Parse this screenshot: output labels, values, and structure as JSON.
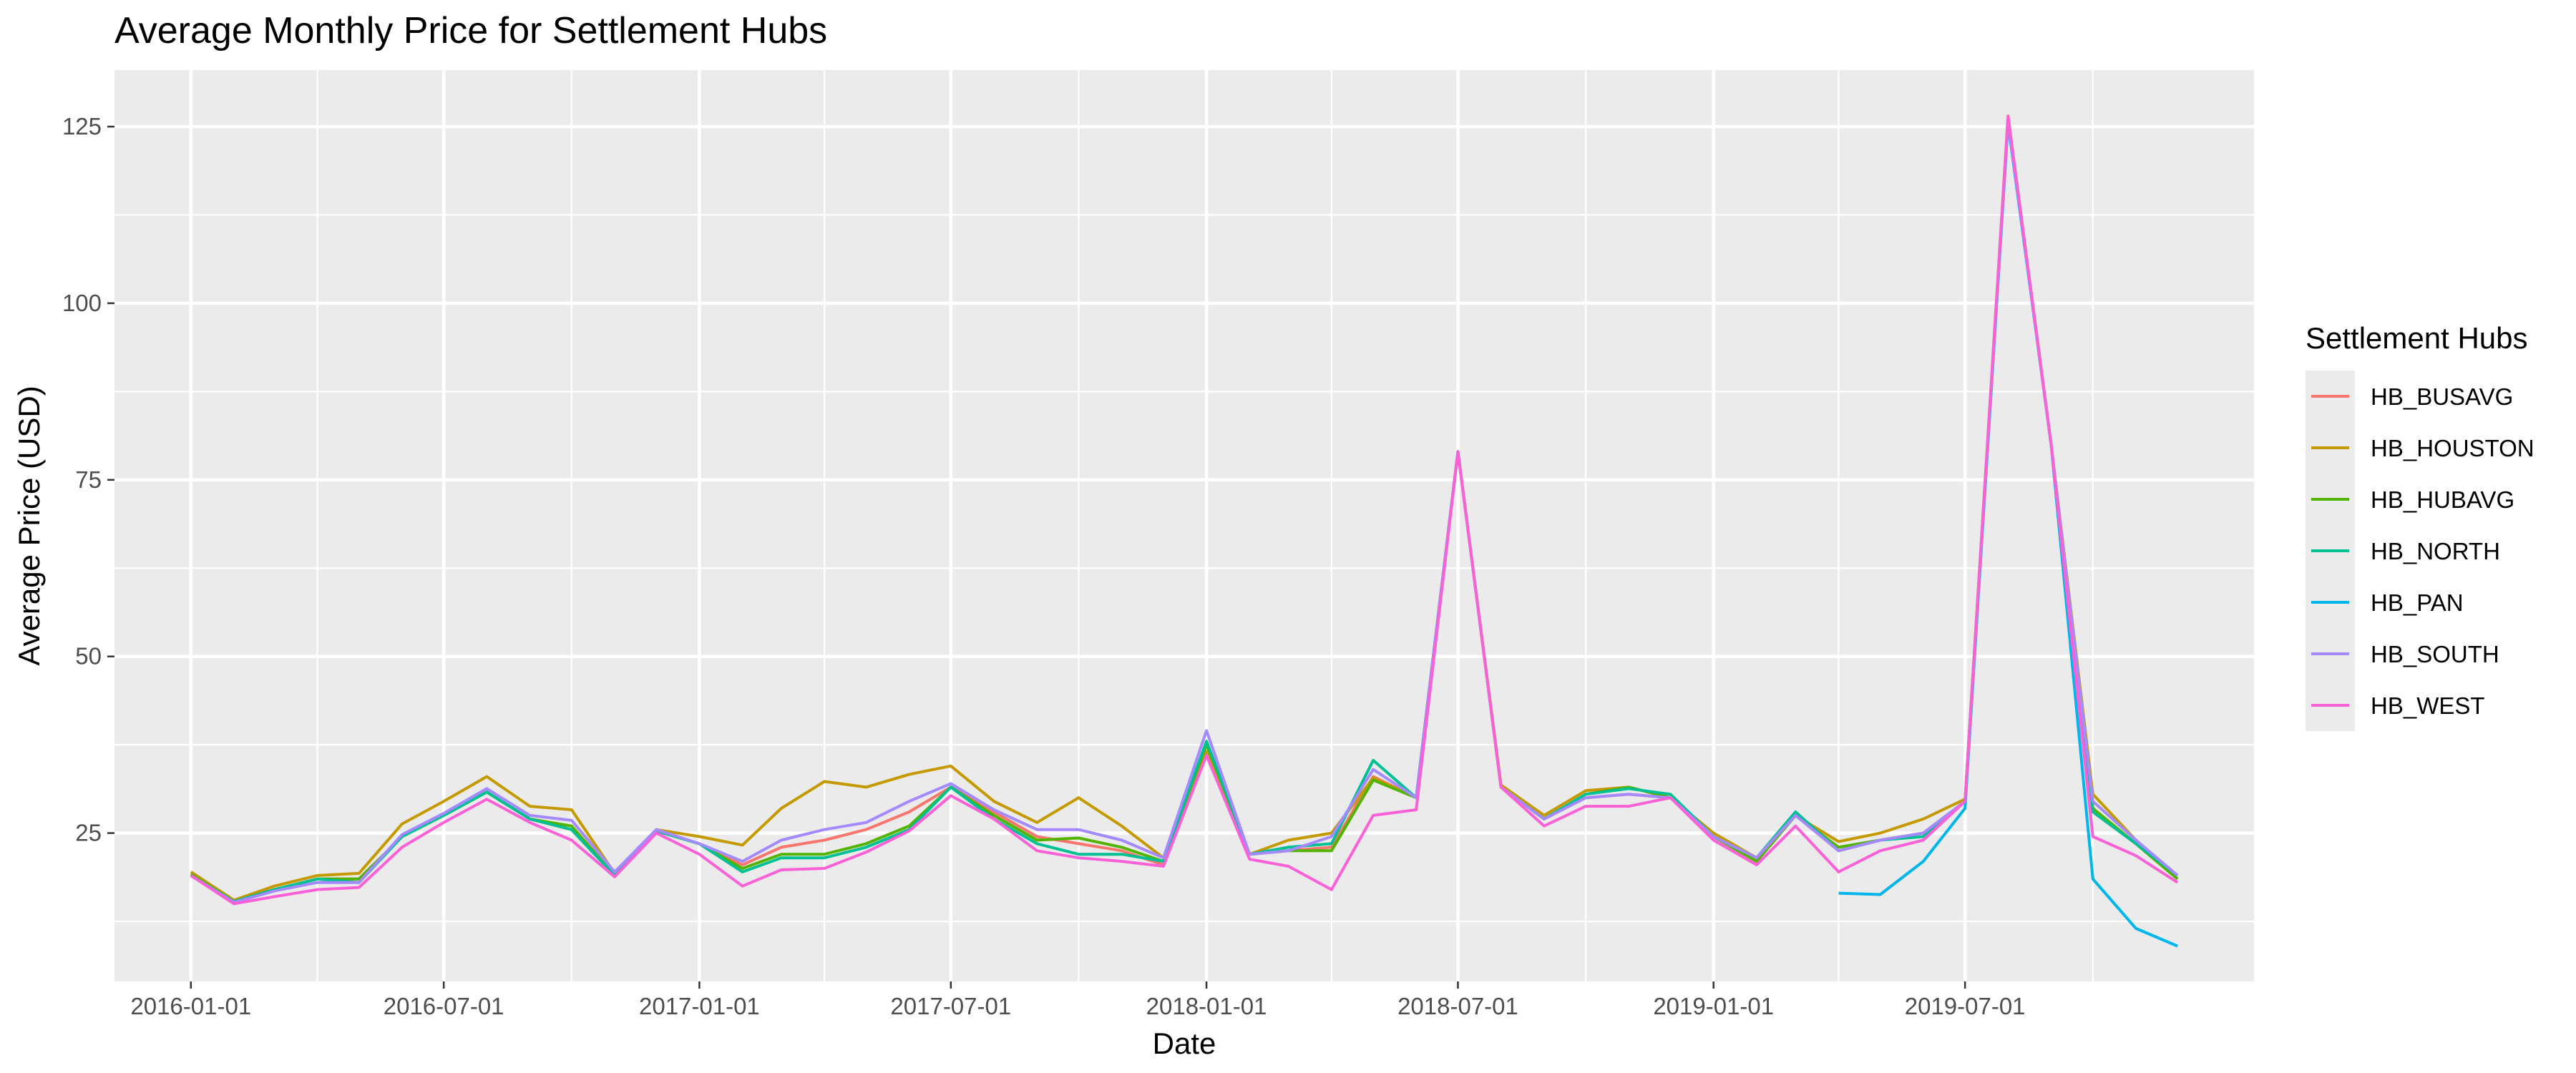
{
  "chart_data": {
    "type": "line",
    "title": "Average Monthly Price for Settlement Hubs",
    "xlabel": "Date",
    "ylabel": "Average Price (USD)",
    "legend_title": "Settlement Hubs",
    "legend_position": "right",
    "grid": true,
    "background": "#ebebeb",
    "x_tick_labels": [
      "2016-01-01",
      "2016-07-01",
      "2017-01-01",
      "2017-07-01",
      "2018-01-01",
      "2018-07-01",
      "2019-01-01",
      "2019-07-01"
    ],
    "y_ticks": [
      25,
      50,
      75,
      100,
      125
    ],
    "ylim": [
      4,
      133
    ],
    "xlim": [
      "2015-11-07",
      "2020-01-25"
    ],
    "x": [
      "2016-01-01",
      "2016-02-01",
      "2016-03-01",
      "2016-04-01",
      "2016-05-01",
      "2016-06-01",
      "2016-07-01",
      "2016-08-01",
      "2016-09-01",
      "2016-10-01",
      "2016-11-01",
      "2016-12-01",
      "2017-01-01",
      "2017-02-01",
      "2017-03-01",
      "2017-04-01",
      "2017-05-01",
      "2017-06-01",
      "2017-07-01",
      "2017-08-01",
      "2017-09-01",
      "2017-10-01",
      "2017-11-01",
      "2017-12-01",
      "2018-01-01",
      "2018-02-01",
      "2018-03-01",
      "2018-04-01",
      "2018-05-01",
      "2018-06-01",
      "2018-07-01",
      "2018-08-01",
      "2018-09-01",
      "2018-10-01",
      "2018-11-01",
      "2018-12-01",
      "2019-01-01",
      "2019-02-01",
      "2019-03-01",
      "2019-04-01",
      "2019-05-01",
      "2019-06-01",
      "2019-07-01",
      "2019-08-01",
      "2019-09-01",
      "2019-10-01",
      "2019-11-01",
      "2019-12-01"
    ],
    "series": [
      {
        "name": "HB_BUSAVG",
        "color": "#F8766D",
        "values": [
          19.2,
          15.3,
          17.0,
          18.5,
          18.5,
          24.5,
          27.5,
          30.8,
          27.0,
          25.5,
          19.0,
          25.3,
          23.5,
          20.5,
          23.0,
          24.0,
          25.5,
          28.0,
          31.5,
          28.0,
          24.5,
          23.5,
          22.5,
          20.5,
          37.5,
          22.0,
          22.5,
          23.0,
          33.0,
          30.0,
          79.0,
          31.5,
          27.0,
          30.0,
          30.5,
          30.0,
          24.5,
          21.0,
          27.5,
          22.5,
          24.0,
          25.0,
          29.5,
          126.0,
          80.0,
          28.0,
          23.5,
          18.5
        ]
      },
      {
        "name": "HB_HOUSTON",
        "color": "#C49A00",
        "values": [
          19.5,
          15.5,
          17.5,
          19.0,
          19.3,
          26.3,
          29.5,
          33.0,
          28.8,
          28.3,
          19.3,
          25.5,
          24.5,
          23.3,
          28.5,
          32.3,
          31.5,
          33.3,
          34.5,
          29.5,
          26.5,
          30.0,
          26.0,
          21.5,
          36.5,
          22.0,
          24.0,
          25.0,
          32.8,
          30.0,
          79.0,
          31.8,
          27.5,
          31.0,
          31.5,
          30.0,
          25.0,
          21.5,
          27.5,
          23.8,
          25.0,
          27.0,
          29.8,
          126.5,
          80.0,
          30.5,
          24.0,
          19.0
        ]
      },
      {
        "name": "HB_HUBAVG",
        "color": "#53B400",
        "values": [
          19.2,
          15.3,
          17.0,
          18.5,
          18.5,
          24.5,
          27.5,
          30.8,
          27.0,
          26.0,
          19.0,
          25.3,
          23.5,
          20.0,
          22.0,
          22.0,
          23.5,
          26.0,
          31.5,
          27.5,
          24.0,
          24.3,
          23.0,
          21.0,
          37.5,
          22.0,
          22.5,
          22.5,
          32.5,
          30.0,
          79.0,
          31.5,
          27.0,
          30.5,
          31.5,
          30.0,
          24.5,
          21.0,
          27.5,
          23.0,
          24.0,
          25.0,
          29.5,
          126.0,
          80.0,
          28.5,
          23.5,
          18.5
        ]
      },
      {
        "name": "HB_NORTH",
        "color": "#00C094",
        "values": [
          19.0,
          15.3,
          17.0,
          18.5,
          18.0,
          24.5,
          27.5,
          30.8,
          27.0,
          25.5,
          19.0,
          25.3,
          23.5,
          19.5,
          21.5,
          21.5,
          23.0,
          25.5,
          31.5,
          27.0,
          23.5,
          22.0,
          22.0,
          21.0,
          38.0,
          22.0,
          23.0,
          23.5,
          35.3,
          30.0,
          79.0,
          31.5,
          27.0,
          30.5,
          31.3,
          30.5,
          24.5,
          21.5,
          28.0,
          22.5,
          24.0,
          24.5,
          29.5,
          126.0,
          80.0,
          28.0,
          23.5,
          19.0
        ]
      },
      {
        "name": "HB_PAN",
        "color": "#00B6EB",
        "values": [
          null,
          null,
          null,
          null,
          null,
          null,
          null,
          null,
          null,
          null,
          null,
          null,
          null,
          null,
          null,
          null,
          null,
          null,
          null,
          null,
          null,
          null,
          null,
          null,
          null,
          null,
          null,
          null,
          null,
          null,
          null,
          null,
          null,
          null,
          null,
          null,
          null,
          null,
          null,
          16.5,
          16.3,
          21.0,
          28.5,
          125.5,
          80.0,
          18.5,
          11.5,
          9.0
        ]
      },
      {
        "name": "HB_SOUTH",
        "color": "#A58AFF",
        "values": [
          19.0,
          15.2,
          16.8,
          18.0,
          18.0,
          24.8,
          27.8,
          31.3,
          27.5,
          26.8,
          19.5,
          25.5,
          23.5,
          21.0,
          24.0,
          25.5,
          26.5,
          29.5,
          32.0,
          28.3,
          25.5,
          25.5,
          24.0,
          21.5,
          39.5,
          22.0,
          22.5,
          24.5,
          34.0,
          30.0,
          79.0,
          31.5,
          27.0,
          30.0,
          30.5,
          30.0,
          24.5,
          21.5,
          27.5,
          22.5,
          24.0,
          25.0,
          29.5,
          126.0,
          80.0,
          29.5,
          24.0,
          19.0
        ]
      },
      {
        "name": "HB_WEST",
        "color": "#FB61D7",
        "values": [
          19.0,
          15.0,
          16.0,
          17.0,
          17.3,
          23.0,
          26.5,
          29.8,
          26.5,
          24.0,
          18.8,
          25.0,
          22.0,
          17.5,
          19.8,
          20.0,
          22.3,
          25.3,
          30.3,
          27.0,
          22.5,
          21.5,
          21.0,
          20.3,
          36.0,
          21.3,
          20.3,
          17.0,
          27.5,
          28.3,
          79.0,
          31.5,
          26.0,
          28.8,
          28.8,
          30.0,
          24.0,
          20.5,
          26.0,
          19.5,
          22.5,
          24.0,
          29.5,
          126.5,
          80.0,
          24.5,
          21.8,
          18.0
        ]
      }
    ]
  }
}
